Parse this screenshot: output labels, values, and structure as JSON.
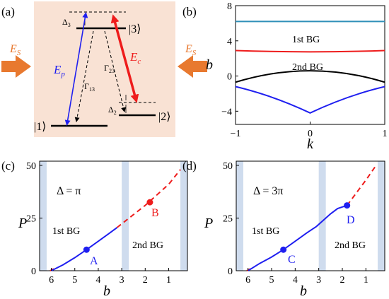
{
  "colors": {
    "panel_a_bg": "#f9e2d4",
    "band_gap_shading": "#cfdcee",
    "blue": "#1f1ff0",
    "red": "#ee1c1c",
    "cyan_band": "#2f8fb8",
    "orange_arrow": "#e8792f",
    "black": "#000000"
  },
  "panel_a": {
    "label": "(a)",
    "es_left": "E",
    "es_right": "E",
    "es_sub": "S",
    "ep": "E",
    "ep_sub": "p",
    "ec": "E",
    "ec_sub": "c",
    "gamma13": "Γ",
    "gamma13_sub": "13",
    "gamma23": "Γ",
    "gamma23_sub": "23",
    "delta3": "Δ",
    "delta3_sub": "3",
    "delta2": "Δ",
    "delta2_sub": "2",
    "ket1": "|1⟩",
    "ket2": "|2⟩",
    "ket3": "|3⟩"
  },
  "panel_b": {
    "label": "(b)",
    "xlabel": "k",
    "ylabel": "b",
    "xticks": [
      "−1",
      "0",
      "1"
    ],
    "yticks": [
      "8",
      "4",
      "0",
      "−4"
    ],
    "bg1": "1st BG",
    "bg2": "2nd BG",
    "chart_data": {
      "type": "line",
      "xlim": [
        -1,
        1
      ],
      "ylim": [
        -5.5,
        8
      ],
      "series": [
        {
          "color": "#2f8fb8",
          "x": [
            -1,
            -0.5,
            0,
            0.5,
            1
          ],
          "y": [
            6.2,
            6.2,
            6.2,
            6.2,
            6.2
          ]
        },
        {
          "color": "#ee1c1c",
          "x": [
            -1,
            -0.5,
            0,
            0.5,
            1
          ],
          "y": [
            2.9,
            2.8,
            2.75,
            2.8,
            2.9
          ]
        },
        {
          "color": "#000000",
          "x": [
            -1,
            -0.5,
            0,
            0.5,
            1
          ],
          "y": [
            -0.7,
            0.2,
            0.6,
            0.2,
            -0.7
          ]
        },
        {
          "color": "#1f1ff0",
          "x": [
            -1,
            -0.5,
            0,
            0.5,
            1
          ],
          "y": [
            -1.2,
            -2.5,
            -4.2,
            -2.5,
            -1.2
          ]
        }
      ]
    }
  },
  "panel_c": {
    "label": "(c)",
    "delta": "Δ = π",
    "bg1": "1st BG",
    "bg2": "2nd BG",
    "point_a": "A",
    "point_b": "B",
    "xlabel": "b",
    "ylabel": "P",
    "xticks": [
      "6",
      "5",
      "4",
      "3",
      "2",
      "1"
    ],
    "yticks": [
      "0",
      "25",
      "50"
    ],
    "chart_data": {
      "type": "line",
      "xlim": [
        6.5,
        0.2
      ],
      "ylim": [
        0,
        52
      ],
      "shaded_bands": [
        [
          6.5,
          6.2
        ],
        [
          3.0,
          2.7
        ],
        [
          0.5,
          0.2
        ]
      ],
      "solid_curve": {
        "x": [
          6.0,
          5.5,
          5.0,
          4.5,
          4.0,
          3.5,
          3.2
        ],
        "y": [
          0,
          2.8,
          6.2,
          10,
          14,
          18,
          20.5
        ]
      },
      "dashed_curve": {
        "x": [
          3.2,
          2.8,
          2.4,
          2.0,
          1.5,
          1.0,
          0.5
        ],
        "y": [
          20.5,
          24,
          27.5,
          31,
          36,
          41,
          48
        ]
      },
      "points": [
        {
          "name": "A",
          "b": 4.5,
          "P": 10
        },
        {
          "name": "B",
          "b": 1.8,
          "P": 32.5
        }
      ]
    }
  },
  "panel_d": {
    "label": "(d)",
    "delta": "Δ = 3π",
    "bg1": "1st BG",
    "bg2": "2nd BG",
    "point_c": "C",
    "point_d": "D",
    "xlabel": "b",
    "ylabel": "P",
    "xticks": [
      "6",
      "5",
      "4",
      "3",
      "2",
      "1"
    ],
    "yticks": [
      "0",
      "25",
      "50"
    ],
    "chart_data": {
      "type": "line",
      "xlim": [
        6.5,
        0.2
      ],
      "ylim": [
        0,
        52
      ],
      "shaded_bands": [
        [
          6.5,
          6.2
        ],
        [
          3.0,
          2.7
        ],
        [
          0.5,
          0.2
        ]
      ],
      "solid_curve": {
        "x": [
          6.0,
          5.5,
          5.0,
          4.5,
          4.0,
          3.5,
          3.1,
          2.8,
          2.5,
          2.2,
          1.8
        ],
        "y": [
          0,
          3.5,
          6.5,
          10,
          14,
          18,
          21,
          24,
          27,
          29.5,
          31
        ]
      },
      "dashed_curve": {
        "x": [
          1.8,
          1.4,
          1.0,
          0.6
        ],
        "y": [
          31,
          37,
          43,
          49.5
        ]
      },
      "points": [
        {
          "name": "C",
          "b": 4.5,
          "P": 10
        },
        {
          "name": "D",
          "b": 1.8,
          "P": 31
        }
      ]
    }
  }
}
